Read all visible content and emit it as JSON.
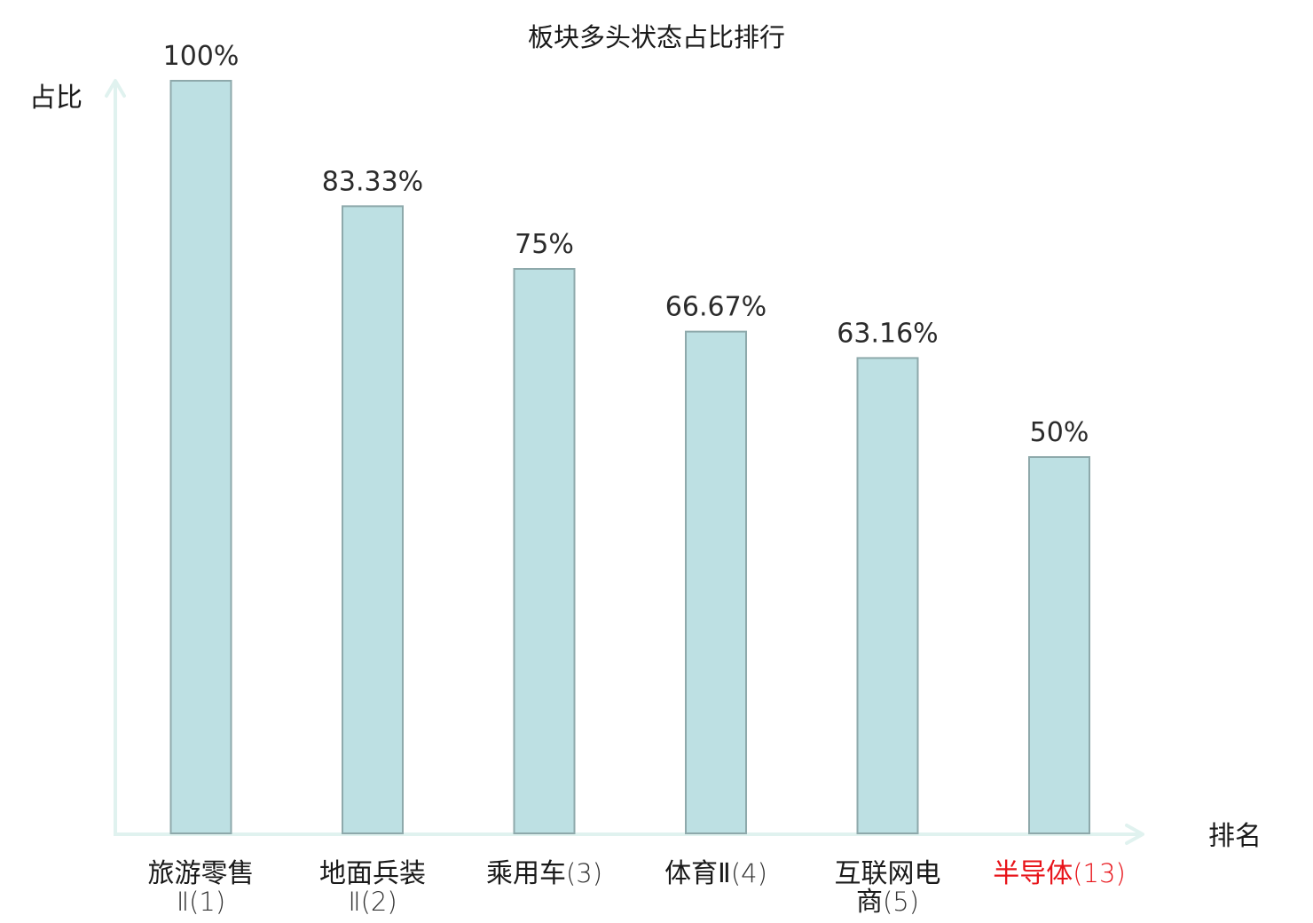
{
  "chart_data": {
    "type": "bar",
    "title": "板块多头状态占比排行",
    "ylabel": "占比",
    "xlabel": "排名",
    "ylim": [
      0,
      100
    ],
    "grid": false,
    "categories": [
      {
        "name": "旅游零售Ⅱ",
        "rank": "(1)",
        "highlight": false
      },
      {
        "name": "地面兵装Ⅱ",
        "rank": "(2)",
        "highlight": false
      },
      {
        "name": "乘用车",
        "rank": "(3)",
        "highlight": false
      },
      {
        "name": "体育Ⅱ",
        "rank": "(4)",
        "highlight": false
      },
      {
        "name": "互联网电商",
        "rank": "(5)",
        "highlight": false
      },
      {
        "name": "半导体",
        "rank": "(13)",
        "highlight": true
      }
    ],
    "values": [
      100,
      83.33,
      75,
      66.67,
      63.16,
      50
    ],
    "value_labels": [
      "100%",
      "83.33%",
      "75%",
      "66.67%",
      "63.16%",
      "50%"
    ],
    "colors": {
      "bar_fill": "#bde0e3",
      "bar_stroke": "#8ea9ab",
      "axis": "#e0f2ef",
      "text": "#1a1a1a",
      "rank_text": "#333333",
      "highlight": "#e8141a"
    }
  }
}
